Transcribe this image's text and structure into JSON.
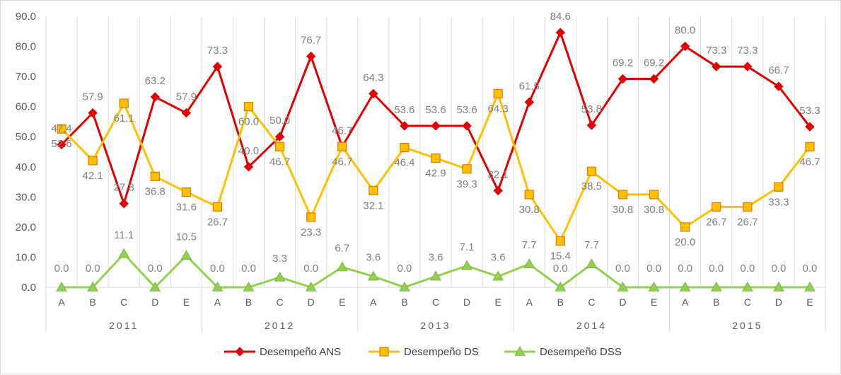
{
  "chart_data": {
    "type": "line",
    "title": "",
    "xlabel": "",
    "ylabel": "",
    "ylim": [
      0,
      90
    ],
    "y_ticks": [
      "0.0",
      "10.0",
      "20.0",
      "30.0",
      "40.0",
      "50.0",
      "60.0",
      "70.0",
      "80.0",
      "90.0"
    ],
    "categories": [
      "A",
      "B",
      "C",
      "D",
      "E",
      "A",
      "B",
      "C",
      "D",
      "E",
      "A",
      "B",
      "C",
      "D",
      "E",
      "A",
      "B",
      "C",
      "D",
      "E",
      "A",
      "B",
      "C",
      "D",
      "E"
    ],
    "groups": [
      "2011",
      "2012",
      "2013",
      "2014",
      "2015"
    ],
    "grid": true,
    "legend_position": "bottom",
    "series": [
      {
        "name": "Desempeño ANS",
        "color": "#e00000",
        "marker": "diamond",
        "values": [
          47.4,
          57.9,
          27.8,
          63.2,
          57.9,
          73.3,
          40.0,
          50.0,
          76.7,
          46.7,
          64.3,
          53.6,
          53.6,
          53.6,
          32.1,
          61.5,
          84.6,
          53.8,
          69.2,
          69.2,
          80.0,
          73.3,
          73.3,
          66.7,
          53.3
        ],
        "labels": [
          "47.4",
          "57.9",
          "27.8",
          "63.2",
          "57.9",
          "73.3",
          "40.0",
          "50.0",
          "76.7",
          "46.7",
          "64.3",
          "53.6",
          "53.6",
          "53.6",
          "32.1",
          "61.5",
          "84.6",
          "53.8",
          "69.2",
          "69.2",
          "80.0",
          "73.3",
          "73.3",
          "66.7",
          "53.3"
        ]
      },
      {
        "name": "Desempeño DS",
        "color": "#ffc000",
        "marker": "square",
        "values": [
          52.6,
          42.1,
          61.1,
          36.8,
          31.6,
          26.7,
          60.0,
          46.7,
          23.3,
          46.7,
          32.1,
          46.4,
          42.9,
          39.3,
          64.3,
          30.8,
          15.4,
          38.5,
          30.8,
          30.8,
          20.0,
          26.7,
          26.7,
          33.3,
          46.7
        ],
        "labels": [
          "52.6",
          "42.1",
          "61.1",
          "36.8",
          "31.6",
          "26.7",
          "60.0",
          "46.7",
          "23.3",
          "46.7",
          "32.1",
          "46.4",
          "42.9",
          "39.3",
          "64.3",
          "30.8",
          "15.4",
          "38.5",
          "30.8",
          "30.8",
          "20.0",
          "26.7",
          "26.7",
          "33.3",
          "46.7"
        ]
      },
      {
        "name": "Desempeño DSS",
        "color": "#92d050",
        "marker": "triangle",
        "values": [
          0.0,
          0.0,
          11.1,
          0.0,
          10.5,
          0.0,
          0.0,
          3.3,
          0.0,
          6.7,
          3.6,
          0.0,
          3.6,
          7.1,
          3.6,
          7.7,
          0.0,
          7.7,
          0.0,
          0.0,
          0.0,
          0.0,
          0.0,
          0.0,
          0.0
        ],
        "labels": [
          "0.0",
          "0.0",
          "11.1",
          "0.0",
          "10.5",
          "0.0",
          "0.0",
          "3.3",
          "0.0",
          "6.7",
          "3.6",
          "0.0",
          "3.6",
          "7.1",
          "3.6",
          "7.7",
          "0.0",
          "7.7",
          "0.0",
          "0.0",
          "0.0",
          "0.0",
          "0.0",
          "0.0",
          "0.0"
        ]
      }
    ]
  }
}
